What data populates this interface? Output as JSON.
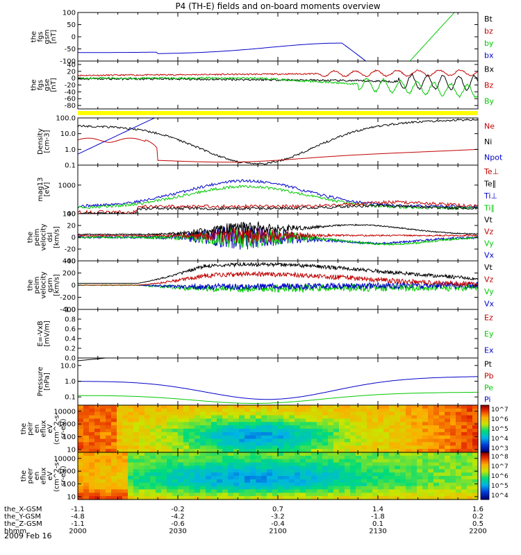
{
  "title": "P4 (TH-E) fields and on-board moments overview",
  "date": "2009 Feb 16",
  "colors": {
    "black": "#000000",
    "red": "#c00000",
    "green": "#00c800",
    "blue": "#0000c8",
    "yellow": "#ffff00"
  },
  "ephemeris": {
    "rows": [
      {
        "label": "the_X-GSM",
        "values": [
          "-1.1",
          "-0.2",
          "0.7",
          "1.4",
          "1.6"
        ]
      },
      {
        "label": "the_Y-GSM",
        "values": [
          "-4.8",
          "-4.2",
          "-3.2",
          "-1.8",
          "0.2"
        ]
      },
      {
        "label": "the_Z-GSM",
        "values": [
          "-1.1",
          "-0.6",
          "-0.4",
          "0.1",
          "0.5"
        ]
      },
      {
        "label": "hhmm",
        "values": [
          "2000",
          "2030",
          "2100",
          "2130",
          "2200"
        ]
      }
    ]
  },
  "chart_data": [
    {
      "type": "line",
      "id": "fgs_gsm",
      "ylabel": [
        "the",
        "fgs",
        "gsm",
        "[nT]"
      ],
      "ylim": [
        -100,
        100
      ],
      "ticks": [
        "100",
        "50",
        "0",
        "-50",
        "-100"
      ],
      "tick_values": [
        100,
        50,
        0,
        -50,
        -100
      ],
      "legend": [
        {
          "label": "Bt",
          "color": "#000000"
        },
        {
          "label": "bz",
          "color": "#c00000"
        },
        {
          "label": "by",
          "color": "#00c800"
        },
        {
          "label": "bx",
          "color": "#0000c8"
        }
      ]
    },
    {
      "type": "line",
      "id": "fgs_gse",
      "ylabel": [
        "the",
        "fgs",
        "gse",
        "[nT]"
      ],
      "ylim": [
        -90,
        50
      ],
      "ticks": [
        "40",
        "20",
        "0",
        "-20",
        "-40",
        "-60",
        "-80"
      ],
      "tick_values": [
        40,
        20,
        0,
        -20,
        -40,
        -60,
        -80
      ],
      "legend": [
        {
          "label": "Bx",
          "color": "#000000"
        },
        {
          "label": "Bz",
          "color": "#c00000"
        },
        {
          "label": "By",
          "color": "#00c800"
        }
      ]
    },
    {
      "type": "line",
      "id": "density",
      "log": true,
      "ylabel": [
        "Density",
        "[cm-3]"
      ],
      "ylim": [
        0.1,
        100
      ],
      "ticks": [
        "100.0",
        "10.0",
        "1.0",
        "0.1"
      ],
      "tick_values": [
        100,
        10,
        1,
        0.1
      ],
      "legend": [
        {
          "label": "Ne",
          "color": "#c00000"
        },
        {
          "label": "Ni",
          "color": "#000000"
        },
        {
          "label": "Npot",
          "color": "#0000c8"
        }
      ]
    },
    {
      "type": "line",
      "id": "temperature",
      "log": true,
      "ylabel": [
        "mag13",
        "[eV]"
      ],
      "ylim": [
        100,
        5000
      ],
      "ticks": [
        "1000",
        "100"
      ],
      "tick_values": [
        1000,
        100
      ],
      "legend": [
        {
          "label": "Te⊥",
          "color": "#c00000"
        },
        {
          "label": "Te∥",
          "color": "#000000"
        },
        {
          "label": "Ti⊥",
          "color": "#0000c8"
        },
        {
          "label": "Ti∥",
          "color": "#00c800"
        }
      ]
    },
    {
      "type": "line",
      "id": "peim_velocity_dsl",
      "ylabel": [
        "the",
        "peim",
        "velocity",
        "dsl",
        "[km/s]"
      ],
      "ylim": [
        -40,
        40
      ],
      "ticks": [
        "40",
        "20",
        "0",
        "-20",
        "-40"
      ],
      "tick_values": [
        40,
        20,
        0,
        -20,
        -40
      ],
      "legend": [
        {
          "label": "Vt",
          "color": "#000000"
        },
        {
          "label": "Vz",
          "color": "#c00000"
        },
        {
          "label": "Vy",
          "color": "#00c800"
        },
        {
          "label": "Vx",
          "color": "#0000c8"
        }
      ]
    },
    {
      "type": "line",
      "id": "peim_velocity_gsm",
      "ylabel": [
        "the",
        "peim",
        "velocity",
        "gsm",
        "[km/s]"
      ],
      "ylim": [
        -400,
        400
      ],
      "ticks": [
        "400",
        "200",
        "0",
        "-200",
        "-400"
      ],
      "tick_values": [
        400,
        200,
        0,
        -200,
        -400
      ],
      "legend": [
        {
          "label": "Vt",
          "color": "#000000"
        },
        {
          "label": "Vz",
          "color": "#c00000"
        },
        {
          "label": "Vy",
          "color": "#00c800"
        },
        {
          "label": "Vx",
          "color": "#0000c8"
        }
      ]
    },
    {
      "type": "line",
      "id": "efield",
      "ylabel": [
        "E=-VxB",
        "[mV/m]"
      ],
      "ylim": [
        0,
        1
      ],
      "ticks": [
        "1.0",
        "0.8",
        "0.6",
        "0.4",
        "0.2",
        "0.0"
      ],
      "tick_values": [
        1,
        0.8,
        0.6,
        0.4,
        0.2,
        0
      ],
      "legend": [
        {
          "label": "Ez",
          "color": "#c00000"
        },
        {
          "label": "Ey",
          "color": "#00c800"
        },
        {
          "label": "Ex",
          "color": "#0000c8"
        }
      ]
    },
    {
      "type": "line",
      "id": "pressure",
      "log": true,
      "ylabel": [
        "Pressure",
        "[nPa]"
      ],
      "ylim": [
        0.03,
        30
      ],
      "ticks": [
        "10.0",
        "1.0",
        "0.1"
      ],
      "tick_values": [
        10,
        1,
        0.1
      ],
      "legend": [
        {
          "label": "Pt",
          "color": "#000000"
        },
        {
          "label": "Pb",
          "color": "#c00000"
        },
        {
          "label": "Pe",
          "color": "#00c800"
        },
        {
          "label": "Pi",
          "color": "#0000c8"
        }
      ]
    },
    {
      "type": "heatmap",
      "id": "peir_eflux",
      "ylabel": [
        "the",
        "peir",
        "en",
        "eflux",
        "eV",
        "(cm^2-s-",
        "sr-eV)"
      ],
      "ylim": [
        6,
        30000
      ],
      "ticks": [
        "10000",
        "1000",
        "100",
        "10"
      ],
      "tick_values": [
        10000,
        1000,
        100,
        10
      ],
      "colorbar_ticks": [
        "10^7",
        "10^6",
        "10^5",
        "10^4",
        "10^3"
      ]
    },
    {
      "type": "heatmap",
      "id": "peer_eflux",
      "ylabel": [
        "the",
        "peer",
        "en",
        "eflux",
        "eV",
        "(cm^2-s-",
        "sr-eV)"
      ],
      "ylim": [
        6,
        30000
      ],
      "ticks": [
        "10000",
        "1000",
        "100",
        "10"
      ],
      "tick_values": [
        10000,
        1000,
        100,
        10
      ],
      "colorbar_ticks": [
        "10^8",
        "10^7",
        "10^6",
        "10^5",
        "10^4"
      ]
    }
  ]
}
